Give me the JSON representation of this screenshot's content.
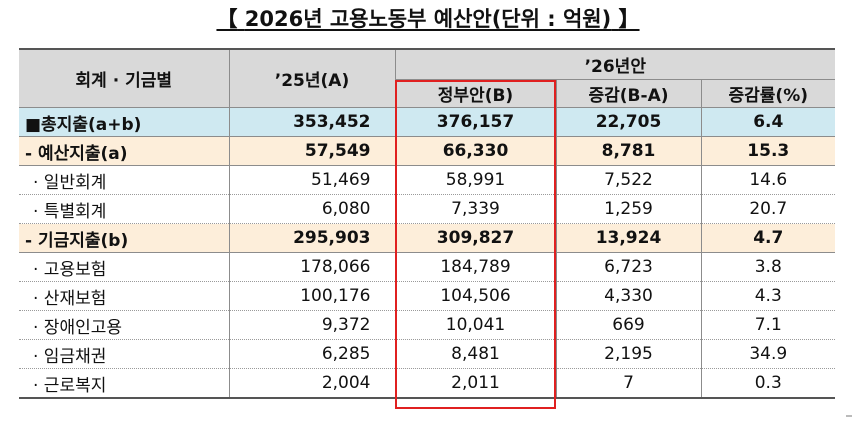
{
  "title": {
    "open": "【",
    "text": "2026년 고용노동부 예산안(단위 : 억원)",
    "close": "】"
  },
  "header": {
    "col_category": "회계 · 기금별",
    "col_prev": "’25년(A)",
    "col_group": "’26년안",
    "col_gov": "정부안(B)",
    "col_diff": "증감(B-A)",
    "col_rate": "증감률(%)"
  },
  "rows": [
    {
      "label": "■총지출(a+b)",
      "prev": "353,452",
      "gov": "376,157",
      "diff": "22,705",
      "rate": "6.4"
    },
    {
      "label": "- 예산지출(a)",
      "prev": "57,549",
      "gov": "66,330",
      "diff": "8,781",
      "rate": "15.3"
    },
    {
      "label": "· 일반회계",
      "prev": "51,469",
      "gov": "58,991",
      "diff": "7,522",
      "rate": "14.6"
    },
    {
      "label": "· 특별회계",
      "prev": "6,080",
      "gov": "7,339",
      "diff": "1,259",
      "rate": "20.7"
    },
    {
      "label": "- 기금지출(b)",
      "prev": "295,903",
      "gov": "309,827",
      "diff": "13,924",
      "rate": "4.7"
    },
    {
      "label": "· 고용보험",
      "prev": "178,066",
      "gov": "184,789",
      "diff": "6,723",
      "rate": "3.8"
    },
    {
      "label": "· 산재보험",
      "prev": "100,176",
      "gov": "104,506",
      "diff": "4,330",
      "rate": "4.3"
    },
    {
      "label": "· 장애인고용",
      "prev": "9,372",
      "gov": "10,041",
      "diff": "669",
      "rate": "7.1"
    },
    {
      "label": "· 임금채권",
      "prev": "6,285",
      "gov": "8,481",
      "diff": "2,195",
      "rate": "34.9"
    },
    {
      "label": "· 근로복지",
      "prev": "2,004",
      "gov": "2,011",
      "diff": "7",
      "rate": "0.3"
    }
  ],
  "colors": {
    "total_row_bg": "#cfe9f1",
    "group_row_bg": "#fdeeda",
    "header_bg": "#d9d9d9",
    "highlight_border": "#e02020"
  }
}
